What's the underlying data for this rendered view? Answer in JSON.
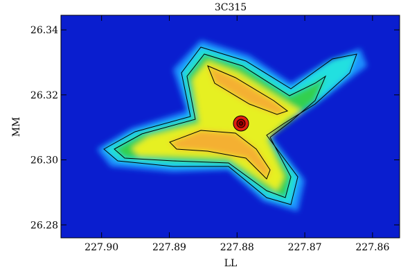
{
  "chart_data": {
    "type": "image",
    "title": "3C315",
    "x_label": "LL",
    "y_label": "MM",
    "xlim": [
      227.906,
      227.856
    ],
    "xticks": [
      {
        "value": 227.9,
        "label": "227.90"
      },
      227.89,
      227.88,
      227.87,
      227.86
    ],
    "ylim": [
      26.276,
      26.3445
    ],
    "yticks": [
      26.28,
      {
        "value": 26.3,
        "label": "26.30"
      },
      26.32,
      26.34
    ]
  }
}
